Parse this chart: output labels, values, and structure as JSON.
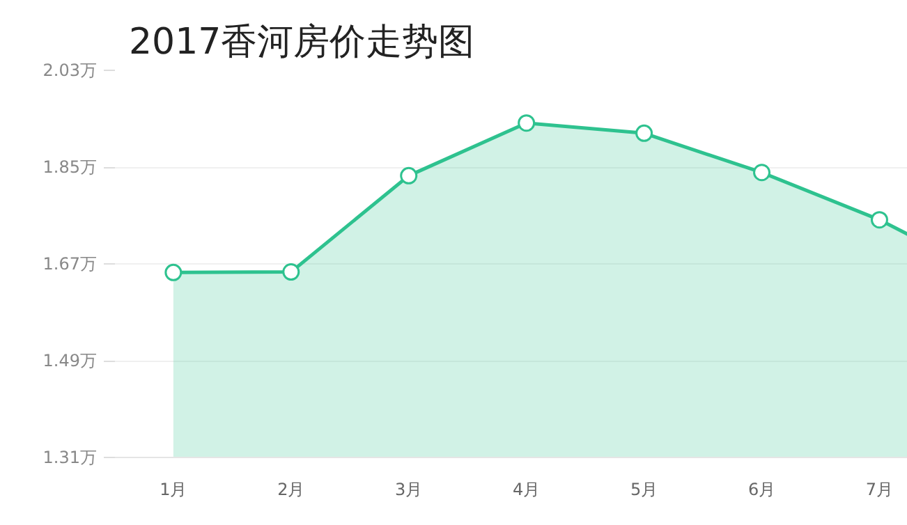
{
  "chart_data": {
    "type": "area",
    "title": "2017香河房价走势图",
    "categories": [
      "1月",
      "2月",
      "3月",
      "4月",
      "5月",
      "6月",
      "7月",
      null
    ],
    "series": [
      {
        "color": "#2ec28f",
        "values": [
          1.654,
          1.655,
          1.834,
          1.932,
          1.913,
          1.84,
          1.752,
          1.64
        ]
      }
    ],
    "ylim": [
      1.31,
      2.03
    ],
    "yticks": [
      {
        "value": 1.31,
        "label": "1.31万"
      },
      {
        "value": 1.49,
        "label": "1.49万"
      },
      {
        "value": 1.67,
        "label": "1.67万"
      },
      {
        "value": 1.85,
        "label": "1.85万"
      },
      {
        "value": 2.03,
        "label": "2.03万"
      }
    ],
    "grid": "y",
    "marker": "circle"
  }
}
